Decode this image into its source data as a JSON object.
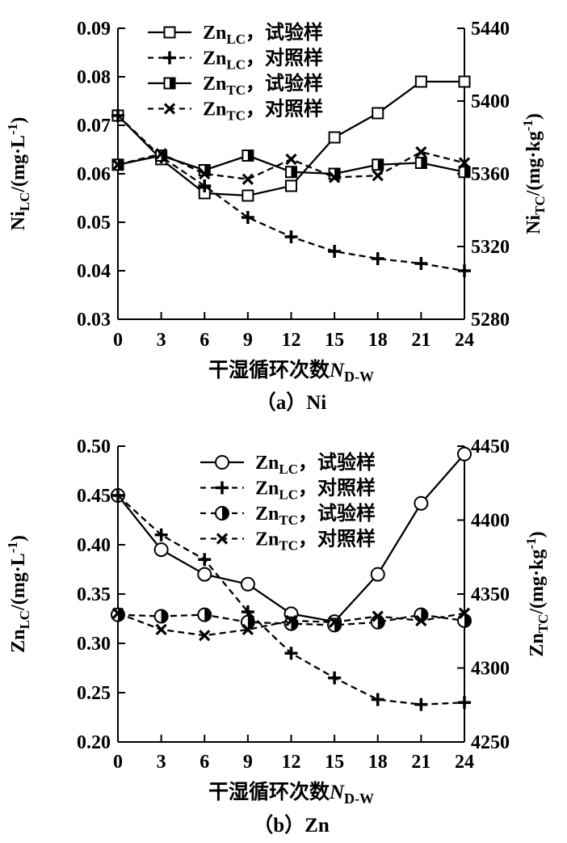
{
  "figure": {
    "background": "#ffffff",
    "ink": "#000000"
  },
  "chart_data": [
    {
      "type": "line",
      "id": "a",
      "caption": "（a）Ni",
      "xlabel_parts": [
        {
          "text": "干湿循环次数"
        },
        {
          "text": "N",
          "style": "italic"
        },
        {
          "text": "D-W",
          "style": "sub"
        }
      ],
      "x": [
        0,
        3,
        6,
        9,
        12,
        15,
        18,
        21,
        24
      ],
      "x_ticks": [
        0,
        3,
        6,
        9,
        12,
        15,
        18,
        21,
        24
      ],
      "left_axis": {
        "title_parts": [
          {
            "text": "Ni"
          },
          {
            "text": "LC",
            "style": "sub"
          },
          {
            "text": "/(mg·L"
          },
          {
            "text": "-1",
            "style": "sup"
          },
          {
            "text": ")"
          }
        ],
        "min": 0.03,
        "max": 0.09,
        "ticks": [
          0.09,
          0.08,
          0.07,
          0.06,
          0.05,
          0.04,
          0.03
        ],
        "decimals": 2
      },
      "right_axis": {
        "title_parts": [
          {
            "text": "Ni"
          },
          {
            "text": "TC",
            "style": "sub"
          },
          {
            "text": "/(mg·kg"
          },
          {
            "text": "-1",
            "style": "sup"
          },
          {
            "text": ")"
          }
        ],
        "min": 5280,
        "max": 5440,
        "ticks": [
          5440,
          5400,
          5360,
          5320,
          5280
        ],
        "decimals": 0
      },
      "series": [
        {
          "label_parts": [
            {
              "text": "Zn"
            },
            {
              "text": "LC",
              "style": "sub"
            },
            {
              "text": "，试验样"
            }
          ],
          "axis": "left",
          "line": "solid",
          "marker": "square-open",
          "values": [
            0.072,
            0.063,
            0.056,
            0.0555,
            0.0575,
            0.0675,
            0.0725,
            0.079,
            0.079
          ]
        },
        {
          "label_parts": [
            {
              "text": "Zn"
            },
            {
              "text": "LC",
              "style": "sub"
            },
            {
              "text": "，对照样"
            }
          ],
          "axis": "left",
          "line": "dashed",
          "marker": "plus",
          "values": [
            0.072,
            0.0635,
            0.0575,
            0.051,
            0.047,
            0.044,
            0.0425,
            0.0415,
            0.04
          ]
        },
        {
          "label_parts": [
            {
              "text": "Zn"
            },
            {
              "text": "TC",
              "style": "sub"
            },
            {
              "text": "，试验样"
            }
          ],
          "axis": "right",
          "line": "solid",
          "marker": "square-half",
          "values": [
            5365,
            5370,
            5362,
            5370,
            5361,
            5360,
            5365,
            5366,
            5361
          ]
        },
        {
          "label_parts": [
            {
              "text": "Zn"
            },
            {
              "text": "TC",
              "style": "sub"
            },
            {
              "text": "，对照样"
            }
          ],
          "axis": "right",
          "line": "dashed",
          "marker": "x-cross",
          "values": [
            5365,
            5371,
            5360,
            5357,
            5368,
            5358,
            5359,
            5372,
            5366
          ]
        }
      ],
      "legend_position": "top-center"
    },
    {
      "type": "line",
      "id": "b",
      "caption": "（b）Zn",
      "xlabel_parts": [
        {
          "text": "干湿循环次数"
        },
        {
          "text": "N",
          "style": "italic"
        },
        {
          "text": "D-W",
          "style": "sub"
        }
      ],
      "x": [
        0,
        3,
        6,
        9,
        12,
        15,
        18,
        21,
        24
      ],
      "x_ticks": [
        0,
        3,
        6,
        9,
        12,
        15,
        18,
        21,
        24
      ],
      "left_axis": {
        "title_parts": [
          {
            "text": "Zn"
          },
          {
            "text": "LC",
            "style": "sub"
          },
          {
            "text": "/(mg·L"
          },
          {
            "text": "-1",
            "style": "sup"
          },
          {
            "text": ")"
          }
        ],
        "min": 0.2,
        "max": 0.5,
        "ticks": [
          0.5,
          0.45,
          0.4,
          0.35,
          0.3,
          0.25,
          0.2
        ],
        "decimals": 2
      },
      "right_axis": {
        "title_parts": [
          {
            "text": "Zn"
          },
          {
            "text": "TC",
            "style": "sub"
          },
          {
            "text": "/(mg·kg"
          },
          {
            "text": "-1",
            "style": "sup"
          },
          {
            "text": ")"
          }
        ],
        "min": 4250,
        "max": 4450,
        "ticks": [
          4450,
          4400,
          4350,
          4300,
          4250
        ],
        "decimals": 0
      },
      "series": [
        {
          "label_parts": [
            {
              "text": "Zn"
            },
            {
              "text": "LC",
              "style": "sub"
            },
            {
              "text": "，试验样"
            }
          ],
          "axis": "left",
          "line": "solid",
          "marker": "circle-open",
          "values": [
            0.45,
            0.395,
            0.37,
            0.36,
            0.33,
            0.322,
            0.37,
            0.442,
            0.492
          ]
        },
        {
          "label_parts": [
            {
              "text": "Zn"
            },
            {
              "text": "LC",
              "style": "sub"
            },
            {
              "text": "，对照样"
            }
          ],
          "axis": "left",
          "line": "dashed",
          "marker": "plus",
          "values": [
            0.45,
            0.41,
            0.385,
            0.332,
            0.29,
            0.265,
            0.243,
            0.238,
            0.24
          ]
        },
        {
          "label_parts": [
            {
              "text": "Zn"
            },
            {
              "text": "TC",
              "style": "sub"
            },
            {
              "text": "，试验样"
            }
          ],
          "axis": "right",
          "line": "dashed",
          "marker": "circle-half",
          "values": [
            4336,
            4335,
            4336,
            4331,
            4330,
            4329,
            4331,
            4336,
            4332
          ]
        },
        {
          "label_parts": [
            {
              "text": "Zn"
            },
            {
              "text": "TC",
              "style": "sub"
            },
            {
              "text": "，对照样"
            }
          ],
          "axis": "right",
          "line": "dashed",
          "marker": "x-cross",
          "values": [
            4337,
            4326,
            4322,
            4326,
            4332,
            4331,
            4335,
            4332,
            4337
          ]
        }
      ],
      "legend_position": "top-center"
    }
  ]
}
